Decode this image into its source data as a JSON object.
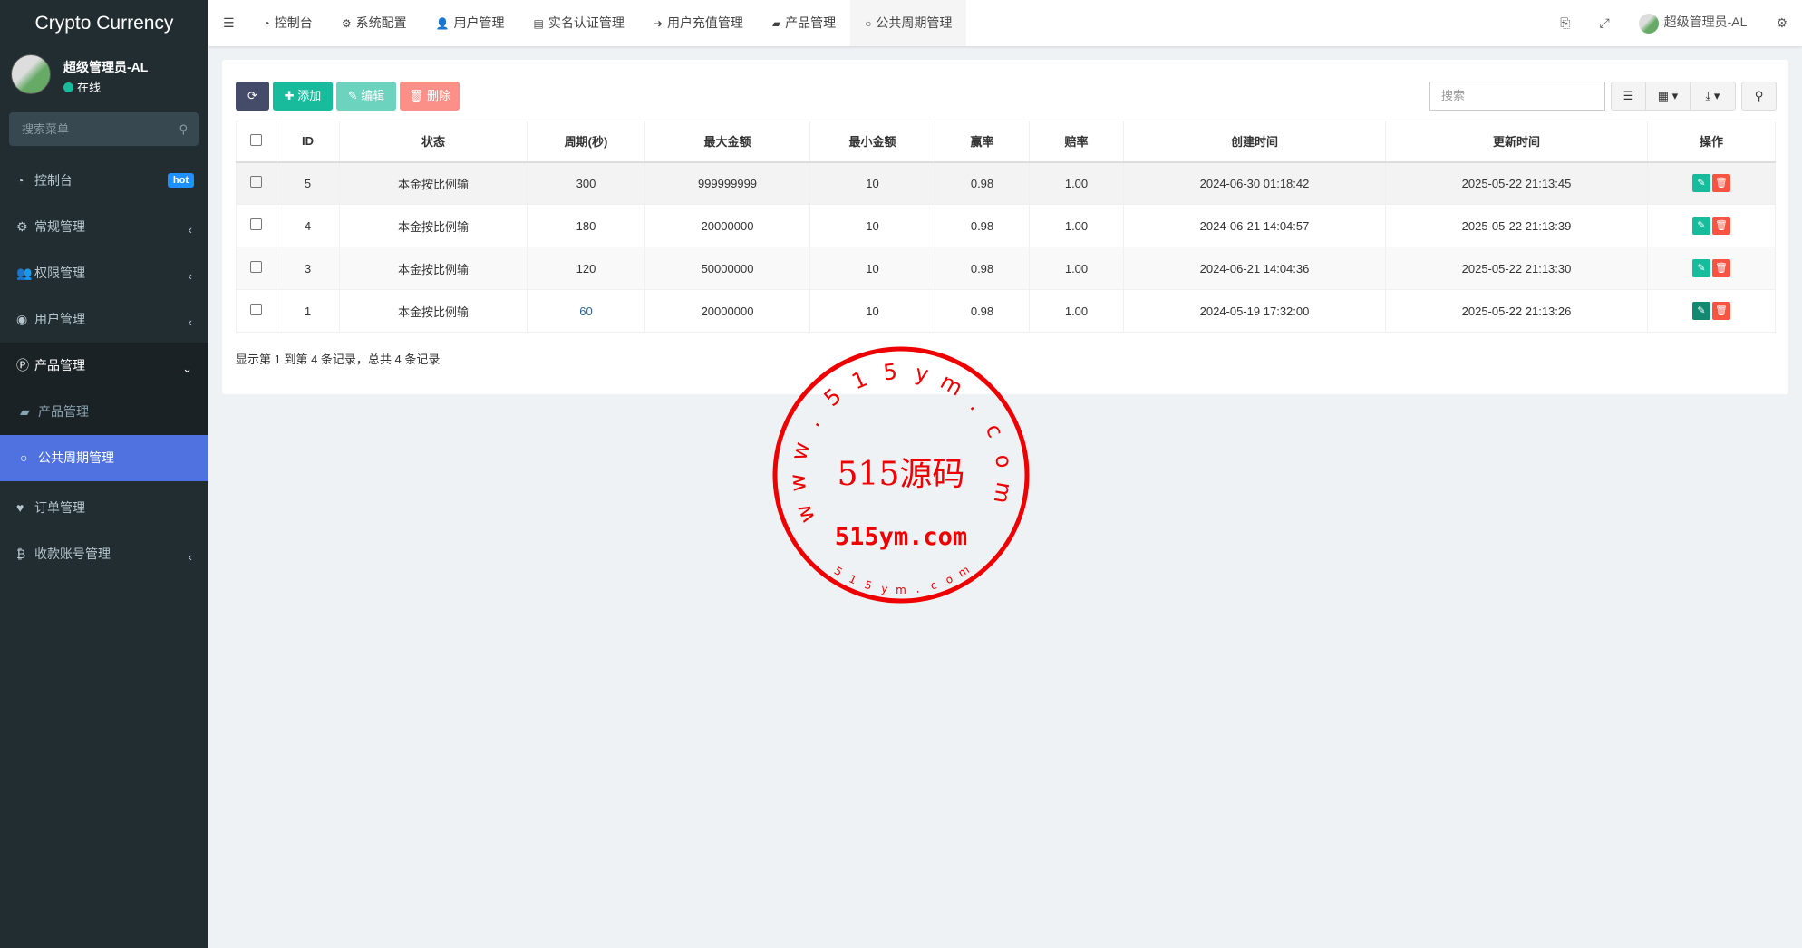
{
  "app": {
    "title": "Crypto Currency"
  },
  "user": {
    "name": "超级管理员-AL",
    "status": "在线"
  },
  "sidebar": {
    "search_placeholder": "搜索菜单",
    "items": [
      {
        "label": "控制台",
        "badge": "hot"
      },
      {
        "label": "常规管理"
      },
      {
        "label": "权限管理"
      },
      {
        "label": "用户管理"
      },
      {
        "label": "产品管理"
      },
      {
        "label": "产品管理"
      },
      {
        "label": "公共周期管理"
      },
      {
        "label": "订单管理"
      },
      {
        "label": "收款账号管理"
      }
    ]
  },
  "header": {
    "tabs": [
      "控制台",
      "系统配置",
      "用户管理",
      "实名认证管理",
      "用户充值管理",
      "产品管理",
      "公共周期管理"
    ],
    "user": "超级管理员-AL"
  },
  "toolbar": {
    "add": "添加",
    "edit": "编辑",
    "delete": "删除",
    "search_placeholder": "搜索"
  },
  "table": {
    "columns": [
      "ID",
      "状态",
      "周期(秒)",
      "最大金额",
      "最小金额",
      "赢率",
      "赔率",
      "创建时间",
      "更新时间",
      "操作"
    ],
    "rows": [
      [
        "5",
        "本金按比例输",
        "300",
        "999999999",
        "10",
        "0.98",
        "1.00",
        "2024-06-30 01:18:42",
        "2025-05-22 21:13:45"
      ],
      [
        "4",
        "本金按比例输",
        "180",
        "20000000",
        "10",
        "0.98",
        "1.00",
        "2024-06-21 14:04:57",
        "2025-05-22 21:13:39"
      ],
      [
        "3",
        "本金按比例输",
        "120",
        "50000000",
        "10",
        "0.98",
        "1.00",
        "2024-06-21 14:04:36",
        "2025-05-22 21:13:30"
      ],
      [
        "1",
        "本金按比例输",
        "60",
        "20000000",
        "10",
        "0.98",
        "1.00",
        "2024-05-19 17:32:00",
        "2025-05-22 21:13:26"
      ]
    ]
  },
  "pagination": {
    "summary": "显示第 1 到第 4 条记录，总共 4 条记录"
  },
  "watermark": {
    "center": "515源码",
    "url": "515ym.com",
    "ring_top": "www.515ym.com",
    "ring_bottom": "515ym.com"
  },
  "colors": {
    "sidebar": "#222d32",
    "active": "#5072e0",
    "success": "#18bc9c",
    "danger": "#f75444",
    "stamp": "#ee0000"
  }
}
